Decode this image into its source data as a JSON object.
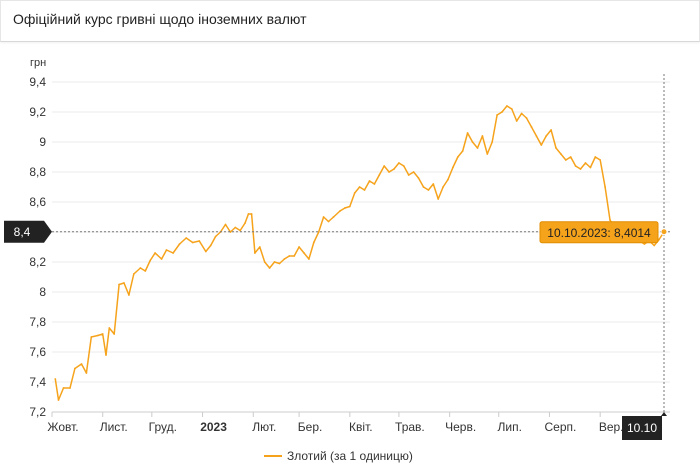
{
  "header": {
    "title": "Офіційний курс гривні щодо іноземних валют"
  },
  "chart_data": {
    "type": "line",
    "ylabel": "грн",
    "ylim": [
      7.2,
      9.4
    ],
    "yticks": [
      7.2,
      7.4,
      7.6,
      7.8,
      8,
      8.2,
      8.4,
      8.6,
      8.8,
      9,
      9.2,
      9.4
    ],
    "ytick_labels": [
      "7,2",
      "7,4",
      "7,6",
      "7,8",
      "8",
      "8,2",
      "8,4",
      "8,6",
      "8,8",
      "9",
      "9,2",
      "9,4"
    ],
    "xlim": [
      "2022-10-01",
      "2023-10-10"
    ],
    "xticks": [
      {
        "date": "2022-10-01",
        "label": "Жовт.",
        "bold": false
      },
      {
        "date": "2022-11-01",
        "label": "Лист.",
        "bold": false
      },
      {
        "date": "2022-12-01",
        "label": "Груд.",
        "bold": false
      },
      {
        "date": "2023-01-01",
        "label": "2023",
        "bold": true
      },
      {
        "date": "2023-02-01",
        "label": "Лют.",
        "bold": false
      },
      {
        "date": "2023-03-01",
        "label": "Бер.",
        "bold": false
      },
      {
        "date": "2023-04-01",
        "label": "Квіт.",
        "bold": false
      },
      {
        "date": "2023-05-01",
        "label": "Трав.",
        "bold": false
      },
      {
        "date": "2023-06-01",
        "label": "Черв.",
        "bold": false
      },
      {
        "date": "2023-07-01",
        "label": "Лип.",
        "bold": false
      },
      {
        "date": "2023-08-01",
        "label": "Серп.",
        "bold": false
      },
      {
        "date": "2023-09-01",
        "label": "Вер.",
        "bold": false
      }
    ],
    "grid": "horizontal",
    "legend": "bottom",
    "series": [
      {
        "name": "Злотий (за 1 одиницю)",
        "color": "#f6a31c",
        "points": [
          [
            "2022-10-03",
            7.42
          ],
          [
            "2022-10-05",
            7.28
          ],
          [
            "2022-10-08",
            7.36
          ],
          [
            "2022-10-12",
            7.36
          ],
          [
            "2022-10-15",
            7.49
          ],
          [
            "2022-10-19",
            7.52
          ],
          [
            "2022-10-22",
            7.46
          ],
          [
            "2022-10-25",
            7.7
          ],
          [
            "2022-10-29",
            7.71
          ],
          [
            "2022-11-01",
            7.72
          ],
          [
            "2022-11-03",
            7.58
          ],
          [
            "2022-11-05",
            7.76
          ],
          [
            "2022-11-08",
            7.72
          ],
          [
            "2022-11-11",
            8.05
          ],
          [
            "2022-11-14",
            8.06
          ],
          [
            "2022-11-17",
            7.98
          ],
          [
            "2022-11-20",
            8.12
          ],
          [
            "2022-11-24",
            8.16
          ],
          [
            "2022-11-27",
            8.14
          ],
          [
            "2022-11-30",
            8.21
          ],
          [
            "2022-12-03",
            8.26
          ],
          [
            "2022-12-07",
            8.22
          ],
          [
            "2022-12-10",
            8.28
          ],
          [
            "2022-12-14",
            8.26
          ],
          [
            "2022-12-18",
            8.32
          ],
          [
            "2022-12-22",
            8.36
          ],
          [
            "2022-12-26",
            8.33
          ],
          [
            "2022-12-30",
            8.34
          ],
          [
            "2023-01-03",
            8.27
          ],
          [
            "2023-01-06",
            8.31
          ],
          [
            "2023-01-09",
            8.37
          ],
          [
            "2023-01-12",
            8.4
          ],
          [
            "2023-01-15",
            8.45
          ],
          [
            "2023-01-18",
            8.4
          ],
          [
            "2023-01-21",
            8.43
          ],
          [
            "2023-01-24",
            8.41
          ],
          [
            "2023-01-27",
            8.46
          ],
          [
            "2023-01-29",
            8.52
          ],
          [
            "2023-01-31",
            8.52
          ],
          [
            "2023-02-02",
            8.26
          ],
          [
            "2023-02-05",
            8.3
          ],
          [
            "2023-02-08",
            8.2
          ],
          [
            "2023-02-11",
            8.16
          ],
          [
            "2023-02-14",
            8.2
          ],
          [
            "2023-02-17",
            8.19
          ],
          [
            "2023-02-20",
            8.22
          ],
          [
            "2023-02-23",
            8.24
          ],
          [
            "2023-02-26",
            8.24
          ],
          [
            "2023-03-01",
            8.3
          ],
          [
            "2023-03-04",
            8.26
          ],
          [
            "2023-03-07",
            8.22
          ],
          [
            "2023-03-10",
            8.33
          ],
          [
            "2023-03-13",
            8.4
          ],
          [
            "2023-03-16",
            8.5
          ],
          [
            "2023-03-19",
            8.47
          ],
          [
            "2023-03-22",
            8.5
          ],
          [
            "2023-03-26",
            8.54
          ],
          [
            "2023-03-29",
            8.56
          ],
          [
            "2023-04-01",
            8.57
          ],
          [
            "2023-04-04",
            8.66
          ],
          [
            "2023-04-07",
            8.7
          ],
          [
            "2023-04-10",
            8.68
          ],
          [
            "2023-04-13",
            8.74
          ],
          [
            "2023-04-16",
            8.72
          ],
          [
            "2023-04-19",
            8.78
          ],
          [
            "2023-04-22",
            8.84
          ],
          [
            "2023-04-25",
            8.8
          ],
          [
            "2023-04-28",
            8.82
          ],
          [
            "2023-05-01",
            8.86
          ],
          [
            "2023-05-04",
            8.84
          ],
          [
            "2023-05-07",
            8.78
          ],
          [
            "2023-05-10",
            8.8
          ],
          [
            "2023-05-13",
            8.76
          ],
          [
            "2023-05-16",
            8.7
          ],
          [
            "2023-05-19",
            8.68
          ],
          [
            "2023-05-22",
            8.72
          ],
          [
            "2023-05-25",
            8.62
          ],
          [
            "2023-05-28",
            8.7
          ],
          [
            "2023-05-31",
            8.75
          ],
          [
            "2023-06-03",
            8.83
          ],
          [
            "2023-06-06",
            8.9
          ],
          [
            "2023-06-09",
            8.94
          ],
          [
            "2023-06-12",
            9.06
          ],
          [
            "2023-06-15",
            9.0
          ],
          [
            "2023-06-18",
            8.96
          ],
          [
            "2023-06-21",
            9.04
          ],
          [
            "2023-06-24",
            8.92
          ],
          [
            "2023-06-27",
            9.0
          ],
          [
            "2023-06-30",
            9.18
          ],
          [
            "2023-07-03",
            9.2
          ],
          [
            "2023-07-06",
            9.24
          ],
          [
            "2023-07-09",
            9.22
          ],
          [
            "2023-07-12",
            9.14
          ],
          [
            "2023-07-15",
            9.19
          ],
          [
            "2023-07-18",
            9.16
          ],
          [
            "2023-07-21",
            9.1
          ],
          [
            "2023-07-24",
            9.04
          ],
          [
            "2023-07-27",
            8.98
          ],
          [
            "2023-07-30",
            9.04
          ],
          [
            "2023-08-02",
            9.08
          ],
          [
            "2023-08-05",
            8.96
          ],
          [
            "2023-08-08",
            8.92
          ],
          [
            "2023-08-11",
            8.88
          ],
          [
            "2023-08-14",
            8.9
          ],
          [
            "2023-08-17",
            8.84
          ],
          [
            "2023-08-20",
            8.82
          ],
          [
            "2023-08-23",
            8.86
          ],
          [
            "2023-08-26",
            8.83
          ],
          [
            "2023-08-29",
            8.9
          ],
          [
            "2023-09-01",
            8.88
          ],
          [
            "2023-09-04",
            8.7
          ],
          [
            "2023-09-07",
            8.48
          ],
          [
            "2023-09-10",
            8.43
          ],
          [
            "2023-09-13",
            8.44
          ],
          [
            "2023-09-16",
            8.42
          ],
          [
            "2023-09-19",
            8.36
          ],
          [
            "2023-09-22",
            8.38
          ],
          [
            "2023-09-25",
            8.34
          ],
          [
            "2023-09-28",
            8.32
          ],
          [
            "2023-10-01",
            8.34
          ],
          [
            "2023-10-04",
            8.31
          ],
          [
            "2023-10-07",
            8.35
          ],
          [
            "2023-10-10",
            8.4014
          ]
        ]
      }
    ],
    "highlight": {
      "date": "2023-10-10",
      "value": 8.4014,
      "tooltip": "10.10.2023: 8,4014",
      "y_flag": "8,4",
      "x_flag": "10.10"
    }
  }
}
